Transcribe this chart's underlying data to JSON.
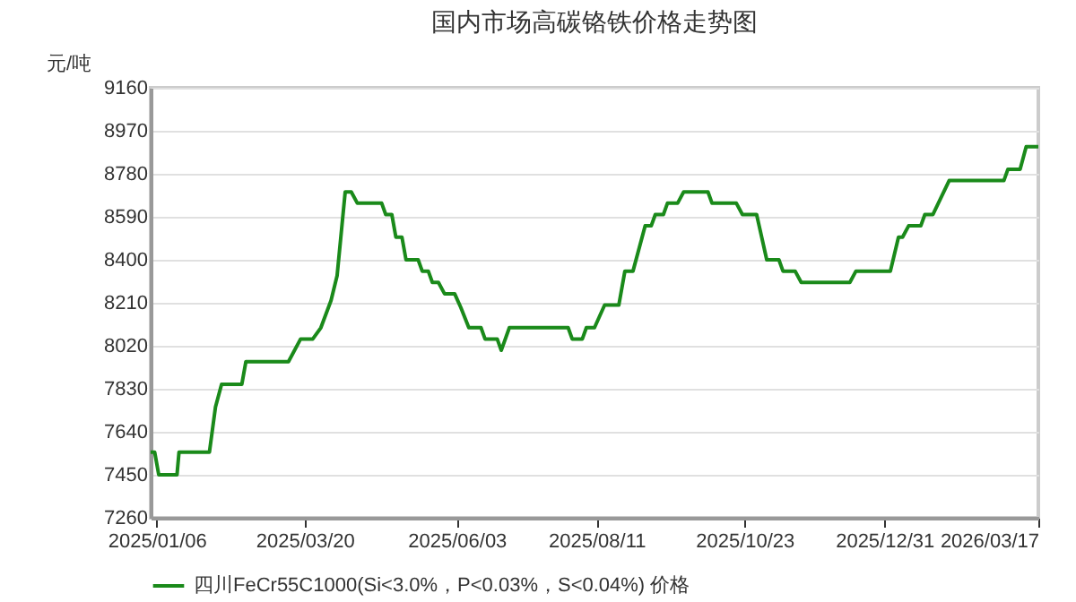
{
  "chart_data": {
    "type": "line",
    "title": "国内市场高碳铬铁价格走势图",
    "ylabel": "元/吨",
    "xlim": [
      "2025-01-03",
      "2026-03-17"
    ],
    "xticks": [
      {
        "value": "2025-01-06",
        "label": "2025/01/06"
      },
      {
        "value": "2025-03-20",
        "label": "2025/03/20"
      },
      {
        "value": "2025-06-03",
        "label": "2025/06/03"
      },
      {
        "value": "2025-08-11",
        "label": "2025/08/11"
      },
      {
        "value": "2025-10-23",
        "label": "2025/10/23"
      },
      {
        "value": "2025-12-31",
        "label": "2025/12/31"
      },
      {
        "value": "2026-03-17",
        "label": "2026/03/17"
      }
    ],
    "ylim": [
      7260,
      9160
    ],
    "yticks": [
      7260,
      7450,
      7640,
      7830,
      8020,
      8210,
      8400,
      8590,
      8780,
      8970,
      9160
    ],
    "grid": "y",
    "legend": "bottom",
    "marker": "none",
    "line_style": "solid",
    "series": [
      {
        "name": "四川FeCr55C1000(Si<3.0%，P<0.03%，S<0.04%) 价格",
        "color": "#1a8a1a",
        "x": [
          "2025-01-03",
          "2025-01-05",
          "2025-01-07",
          "2025-01-16",
          "2025-01-17",
          "2025-02-01",
          "2025-02-04",
          "2025-02-07",
          "2025-02-17",
          "2025-02-19",
          "2025-03-12",
          "2025-03-18",
          "2025-03-24",
          "2025-03-28",
          "2025-04-02",
          "2025-04-05",
          "2025-04-09",
          "2025-04-12",
          "2025-04-15",
          "2025-04-27",
          "2025-04-29",
          "2025-05-02",
          "2025-05-04",
          "2025-05-07",
          "2025-05-09",
          "2025-05-15",
          "2025-05-17",
          "2025-05-20",
          "2025-05-22",
          "2025-05-25",
          "2025-05-28",
          "2025-06-02",
          "2025-06-05",
          "2025-06-09",
          "2025-06-15",
          "2025-06-17",
          "2025-06-23",
          "2025-06-25",
          "2025-06-29",
          "2025-07-28",
          "2025-07-30",
          "2025-08-04",
          "2025-08-06",
          "2025-08-10",
          "2025-08-15",
          "2025-08-22",
          "2025-08-25",
          "2025-08-29",
          "2025-09-04",
          "2025-09-07",
          "2025-09-09",
          "2025-09-13",
          "2025-09-15",
          "2025-09-20",
          "2025-09-23",
          "2025-10-05",
          "2025-10-07",
          "2025-10-19",
          "2025-10-22",
          "2025-10-29",
          "2025-11-03",
          "2025-11-09",
          "2025-11-11",
          "2025-11-17",
          "2025-11-20",
          "2025-12-14",
          "2025-12-17",
          "2026-01-03",
          "2026-01-07",
          "2026-01-09",
          "2026-01-12",
          "2026-01-18",
          "2026-01-20",
          "2026-01-24",
          "2026-02-01",
          "2026-02-28",
          "2026-03-02",
          "2026-03-08",
          "2026-03-11",
          "2026-03-17"
        ],
        "values": [
          7550,
          7550,
          7450,
          7450,
          7550,
          7550,
          7750,
          7850,
          7850,
          7950,
          7950,
          8050,
          8050,
          8100,
          8220,
          8330,
          8700,
          8700,
          8650,
          8650,
          8600,
          8600,
          8500,
          8500,
          8400,
          8400,
          8350,
          8350,
          8300,
          8300,
          8250,
          8250,
          8190,
          8100,
          8100,
          8050,
          8050,
          8000,
          8100,
          8100,
          8050,
          8050,
          8100,
          8100,
          8200,
          8200,
          8350,
          8350,
          8550,
          8550,
          8600,
          8600,
          8650,
          8650,
          8700,
          8700,
          8650,
          8650,
          8600,
          8600,
          8400,
          8400,
          8350,
          8350,
          8300,
          8300,
          8350,
          8350,
          8500,
          8500,
          8550,
          8550,
          8600,
          8600,
          8750,
          8750,
          8800,
          8800,
          8900,
          8900
        ]
      }
    ]
  }
}
